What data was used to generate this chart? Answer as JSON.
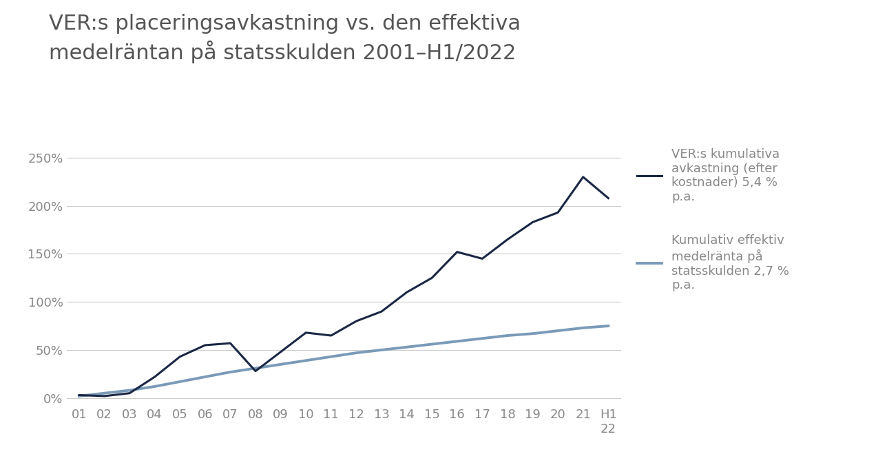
{
  "title": "VER:s placeringsavkastning vs. den effektiva\nmedelräntan på statsskulden 2001–H1/2022",
  "title_fontsize": 22,
  "title_color": "#555555",
  "background_color": "#ffffff",
  "x_labels": [
    "01",
    "02",
    "03",
    "04",
    "05",
    "06",
    "07",
    "08",
    "09",
    "10",
    "11",
    "12",
    "13",
    "14",
    "15",
    "16",
    "17",
    "18",
    "19",
    "20",
    "21",
    "H1\n22"
  ],
  "x_values": [
    0,
    1,
    2,
    3,
    4,
    5,
    6,
    7,
    8,
    9,
    10,
    11,
    12,
    13,
    14,
    15,
    16,
    17,
    18,
    19,
    20,
    21
  ],
  "ver_line": [
    3,
    2,
    5,
    22,
    43,
    55,
    57,
    28,
    48,
    68,
    65,
    80,
    90,
    110,
    125,
    152,
    145,
    165,
    183,
    193,
    230,
    208
  ],
  "rate_line": [
    2,
    5,
    8,
    12,
    17,
    22,
    27,
    31,
    35,
    39,
    43,
    47,
    50,
    53,
    56,
    59,
    62,
    65,
    67,
    70,
    73,
    75
  ],
  "ver_color": "#1a2744",
  "rate_color": "#7a9ab8",
  "ver_linewidth": 2.2,
  "rate_linewidth": 2.8,
  "legend1_text": "VER:s kumulativa\navkastning (efter\nkostnader) 5,4 %\np.a.",
  "legend2_text": "Kumulativ effektiv\nmedelränta på\nstatsskulden 2,7 %\np.a.",
  "legend_fontsize": 13,
  "ylim": [
    -5,
    260
  ],
  "yticks": [
    0,
    50,
    100,
    150,
    200,
    250
  ],
  "grid_color": "#cccccc",
  "tick_color": "#888888",
  "tick_fontsize": 13
}
